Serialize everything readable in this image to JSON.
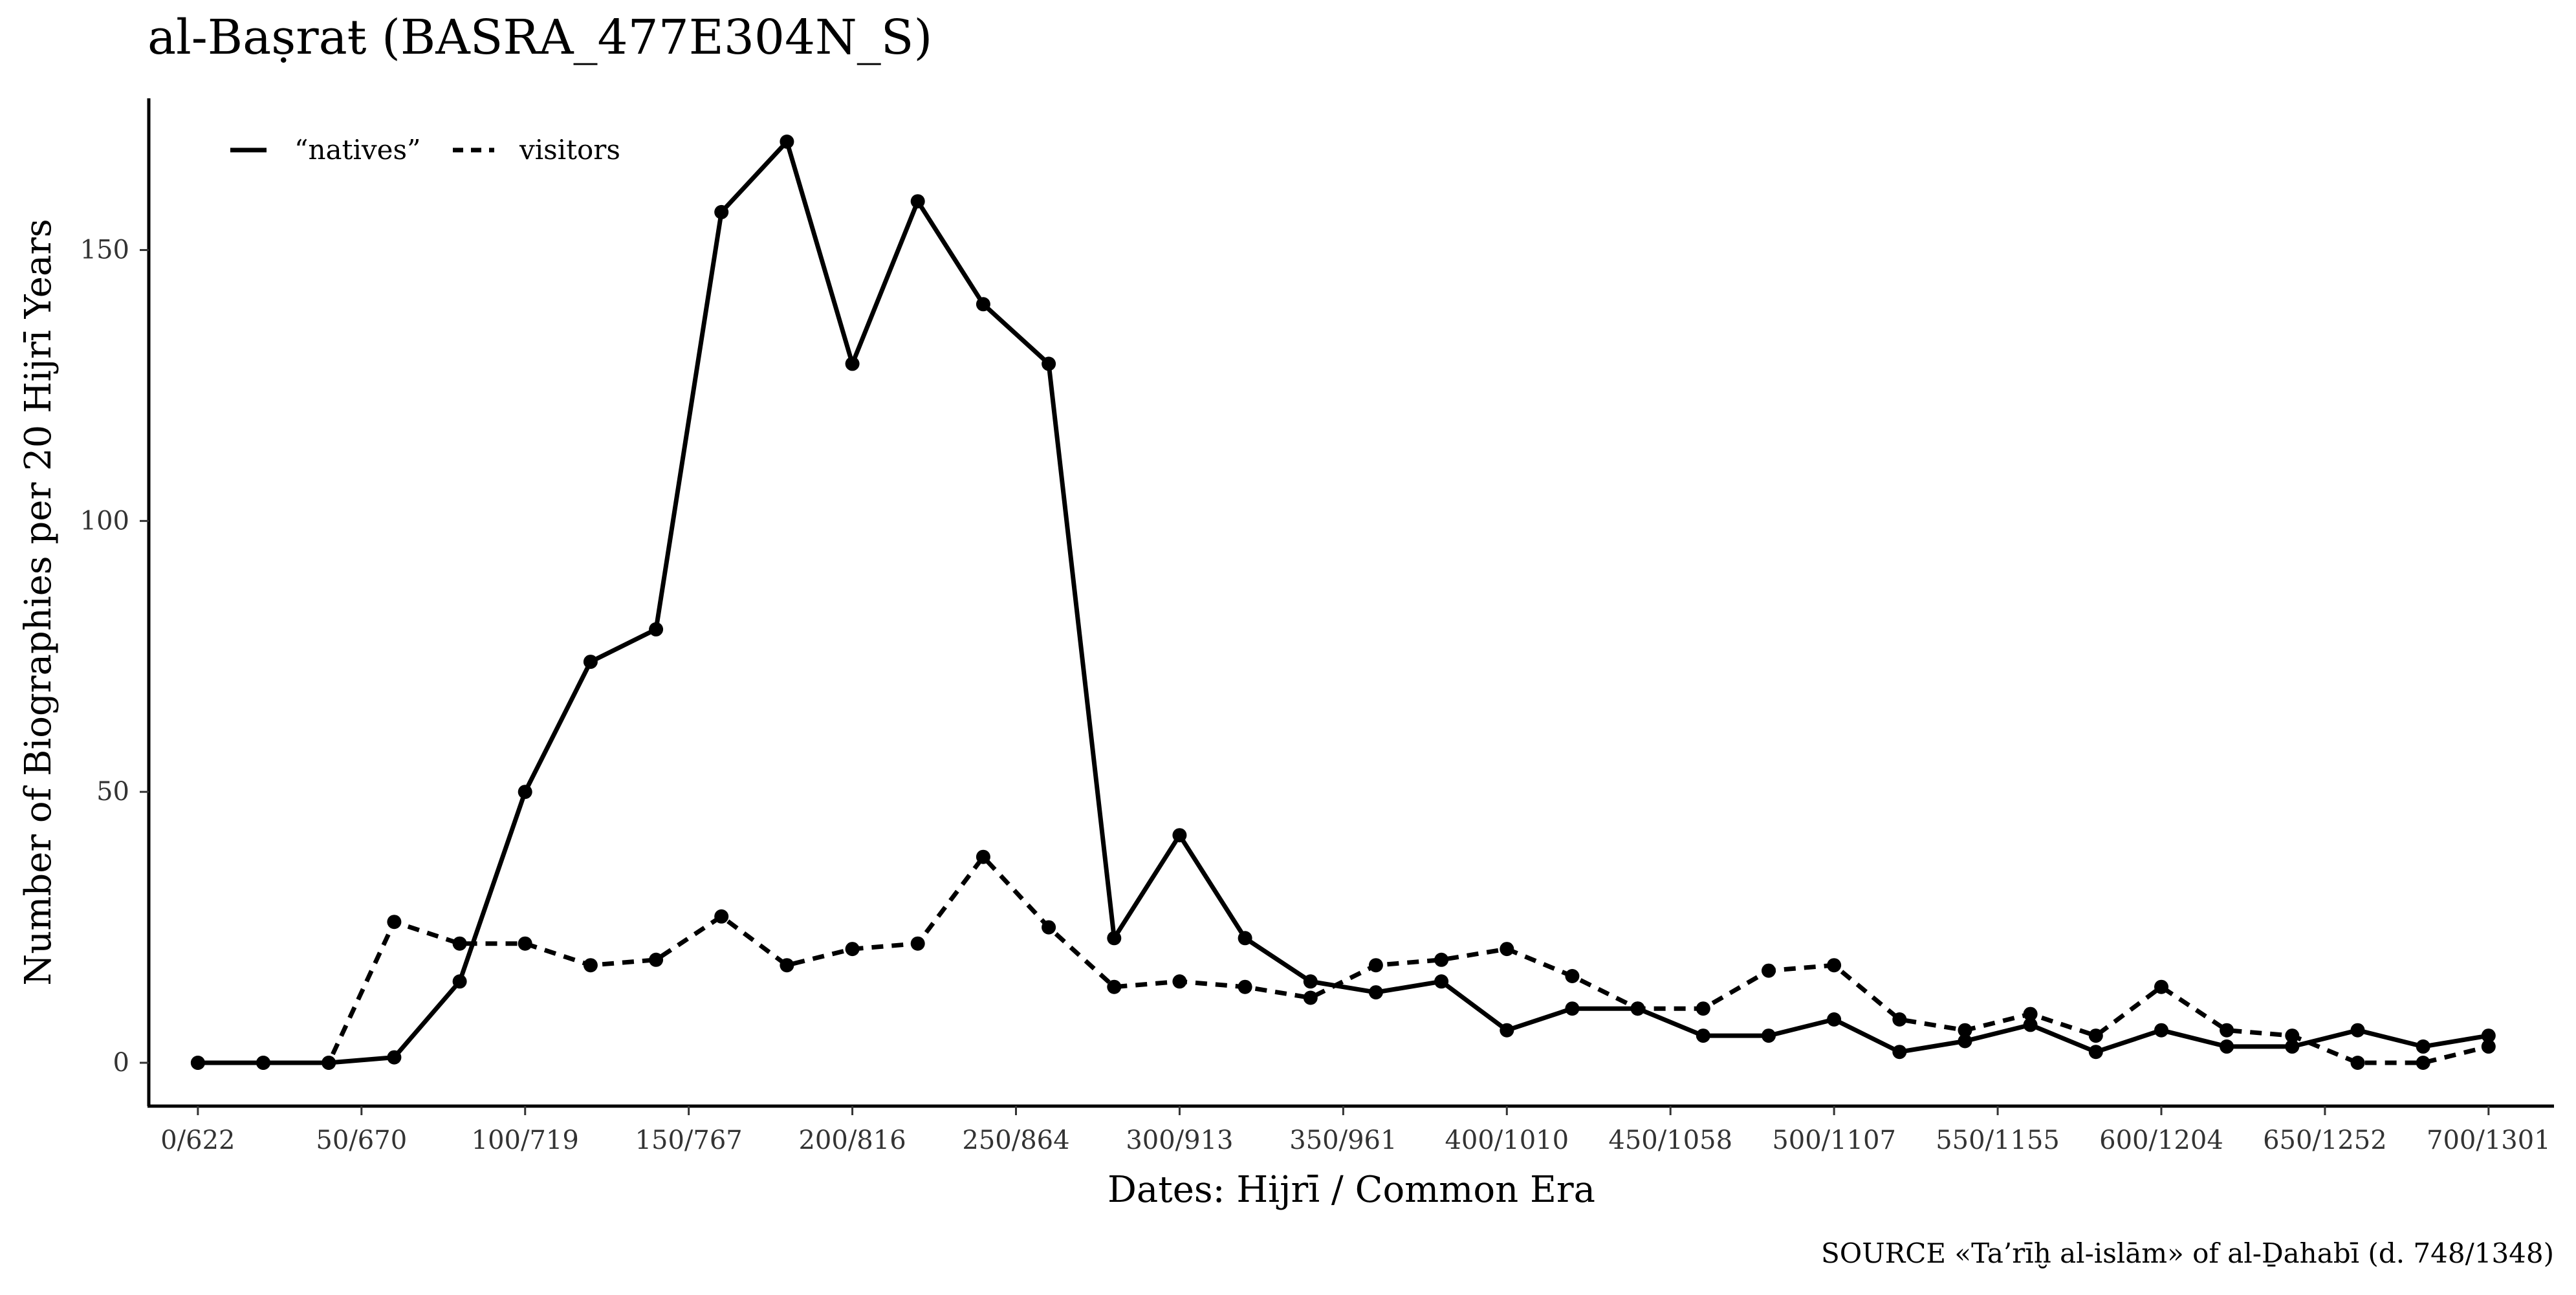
{
  "chart_data": {
    "type": "line",
    "title": "al-Baṣraŧ (BASRA_477E304N_S)",
    "xlabel": "Dates: Hijrī / Common Era",
    "ylabel": "Number of Biographies per 20 Hijrī Years",
    "source": "SOURCE «Ta’rīḫ al-islām» of al-Ḏahabī (d. 748/1348)",
    "x_tick_values": [
      0,
      50,
      100,
      150,
      200,
      250,
      300,
      350,
      400,
      450,
      500,
      550,
      600,
      650,
      700
    ],
    "x_tick_labels": [
      "0/622",
      "50/670",
      "100/719",
      "150/767",
      "200/816",
      "250/864",
      "300/913",
      "350/961",
      "400/1010",
      "450/1058",
      "500/1107",
      "550/1155",
      "600/1204",
      "650/1252",
      "700/1301"
    ],
    "y_ticks": [
      0,
      50,
      100,
      150
    ],
    "xlim": [
      -15,
      720
    ],
    "ylim": [
      -8,
      178
    ],
    "x": [
      0,
      20,
      40,
      60,
      80,
      100,
      120,
      140,
      160,
      180,
      200,
      220,
      240,
      260,
      280,
      300,
      320,
      340,
      360,
      380,
      400,
      420,
      440,
      460,
      480,
      500,
      520,
      540,
      560,
      580,
      600,
      620,
      640,
      660,
      680,
      700
    ],
    "series": [
      {
        "name": "“natives”",
        "style": "solid",
        "values": [
          0,
          0,
          0,
          1,
          15,
          50,
          74,
          80,
          157,
          170,
          129,
          159,
          140,
          129,
          23,
          42,
          23,
          15,
          13,
          15,
          6,
          10,
          10,
          5,
          5,
          8,
          2,
          4,
          7,
          2,
          6,
          3,
          3,
          6,
          3,
          5
        ]
      },
      {
        "name": "visitors",
        "style": "dashed",
        "values": [
          0,
          0,
          0,
          26,
          22,
          22,
          18,
          19,
          27,
          18,
          21,
          22,
          38,
          25,
          14,
          15,
          14,
          12,
          18,
          19,
          21,
          16,
          10,
          10,
          17,
          18,
          8,
          6,
          9,
          5,
          14,
          6,
          5,
          0,
          0,
          3
        ]
      }
    ],
    "grid": false,
    "legend_position": "top-left",
    "line_color": "#000000"
  }
}
